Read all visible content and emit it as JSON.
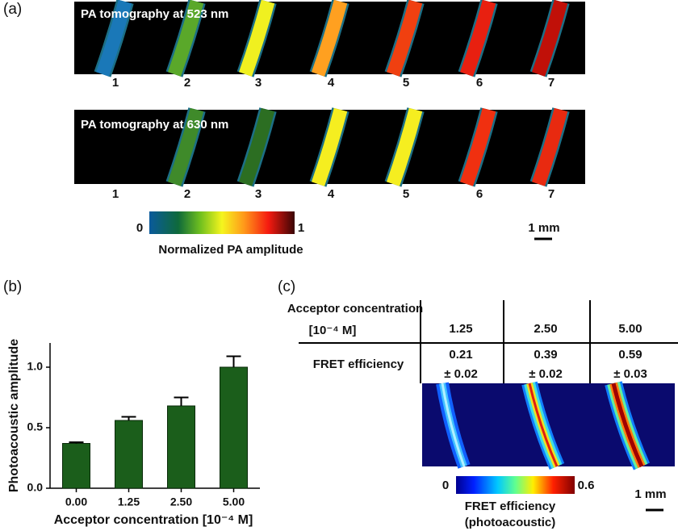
{
  "panel_a": {
    "label": "(a)",
    "rows": [
      {
        "title": "PA tomography at 523 nm",
        "samples": [
          "1",
          "2",
          "3",
          "4",
          "5",
          "6",
          "7"
        ]
      },
      {
        "title": "PA tomography at 630 nm",
        "samples": [
          "1",
          "2",
          "3",
          "4",
          "5",
          "6",
          "7"
        ]
      }
    ],
    "colorbar": {
      "min_label": "0",
      "max_label": "1",
      "title": "Normalized PA amplitude"
    },
    "scale_bar": "1 mm"
  },
  "chart_data": {
    "type": "bar",
    "panel_label": "(b)",
    "x_label": "Acceptor concentration [10⁻⁴ M]",
    "y_label": "Photoacoustic amplitude",
    "categories": [
      "0.00",
      "1.25",
      "2.50",
      "5.00"
    ],
    "values": [
      0.37,
      0.56,
      0.68,
      1.0
    ],
    "errors": [
      0.01,
      0.03,
      0.07,
      0.09
    ],
    "color": "#1b5e1b",
    "ylim": [
      0,
      1.2
    ],
    "yticks": [
      {
        "value": 0,
        "label": "0.0"
      },
      {
        "value": 0.5,
        "label": "0.5"
      },
      {
        "value": 1,
        "label": "1.0"
      }
    ]
  },
  "panel_c": {
    "label": "(c)",
    "table": {
      "header": [
        "Acceptor concentration",
        "[10⁻⁴ M]"
      ],
      "columns": [
        "1.25",
        "2.50",
        "5.00"
      ],
      "row_label": "FRET efficiency",
      "values": [
        [
          "0.21",
          "± 0.02"
        ],
        [
          "0.39",
          "± 0.02"
        ],
        [
          "0.59",
          "± 0.03"
        ]
      ]
    },
    "colorbar": {
      "min_label": "0",
      "max_label": "0.6",
      "title": [
        "FRET efficiency",
        "(photoacoustic)"
      ]
    },
    "scale_bar": "1 mm"
  }
}
